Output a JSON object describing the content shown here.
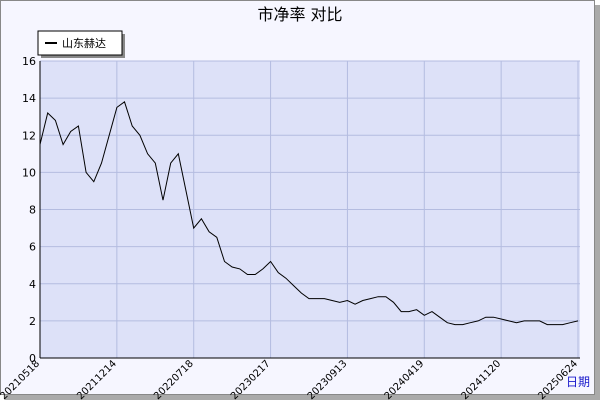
{
  "chart_data": {
    "type": "line",
    "title": "市净率 对比",
    "x_label": "日期",
    "categories": [
      "20210518",
      null,
      null,
      null,
      null,
      null,
      null,
      null,
      null,
      null,
      "20211214",
      null,
      null,
      null,
      null,
      null,
      null,
      null,
      null,
      null,
      "20220718",
      null,
      null,
      null,
      null,
      null,
      null,
      null,
      null,
      null,
      "20230217",
      null,
      null,
      null,
      null,
      null,
      null,
      null,
      null,
      null,
      "20230913",
      null,
      null,
      null,
      null,
      null,
      null,
      null,
      null,
      null,
      "20240419",
      null,
      null,
      null,
      null,
      null,
      null,
      null,
      null,
      null,
      "20241120",
      null,
      null,
      null,
      null,
      null,
      null,
      null,
      null,
      null,
      "20250624"
    ],
    "series": [
      {
        "name": "山东赫达",
        "color": "#000000",
        "values": [
          11.5,
          13.2,
          12.8,
          11.5,
          12.2,
          12.5,
          10.0,
          9.5,
          10.5,
          12.0,
          13.5,
          13.8,
          12.5,
          12.0,
          11.0,
          10.5,
          8.5,
          10.5,
          11.0,
          9.0,
          7.0,
          7.5,
          6.8,
          6.5,
          5.2,
          4.9,
          4.8,
          4.5,
          4.5,
          4.8,
          5.2,
          4.6,
          4.3,
          3.9,
          3.5,
          3.2,
          3.2,
          3.2,
          3.1,
          3.0,
          3.1,
          2.9,
          3.1,
          3.2,
          3.3,
          3.3,
          3.0,
          2.5,
          2.5,
          2.6,
          2.3,
          2.5,
          2.2,
          1.9,
          1.8,
          1.8,
          1.9,
          2.0,
          2.2,
          2.2,
          2.1,
          2.0,
          1.9,
          2.0,
          2.0,
          2.0,
          1.8,
          1.8,
          1.8,
          1.9,
          2.0
        ]
      }
    ],
    "ylim": [
      0,
      16
    ],
    "yticks": [
      0,
      2,
      4,
      6,
      8,
      10,
      12,
      14,
      16
    ],
    "grid": true,
    "legend": "top-left"
  }
}
